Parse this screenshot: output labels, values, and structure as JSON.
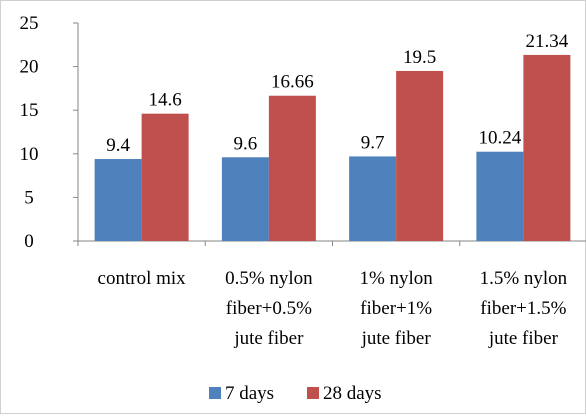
{
  "chart_data": {
    "type": "bar",
    "categories": [
      [
        "control mix"
      ],
      [
        "0.5% nylon",
        "fiber+0.5%",
        "jute fiber"
      ],
      [
        "1% nylon",
        "fiber+1%",
        "jute fiber"
      ],
      [
        "1.5% nylon",
        "fiber+1.5%",
        "jute fiber"
      ]
    ],
    "series": [
      {
        "name": "7 days",
        "values": [
          9.4,
          9.6,
          9.7,
          10.24
        ],
        "labels": [
          "9.4",
          "9.6",
          "9.7",
          "10.24"
        ],
        "color": "#4F81BD"
      },
      {
        "name": "28 days",
        "values": [
          14.6,
          16.66,
          19.5,
          21.34
        ],
        "labels": [
          "14.6",
          "16.66",
          "19.5",
          "21.34"
        ],
        "color": "#C0504D"
      }
    ],
    "ylim": [
      0,
      25
    ],
    "yticks": [
      0,
      5,
      10,
      15,
      20,
      25
    ],
    "title": "",
    "xlabel": "",
    "ylabel": "",
    "grid": false,
    "legend": "bottom"
  }
}
